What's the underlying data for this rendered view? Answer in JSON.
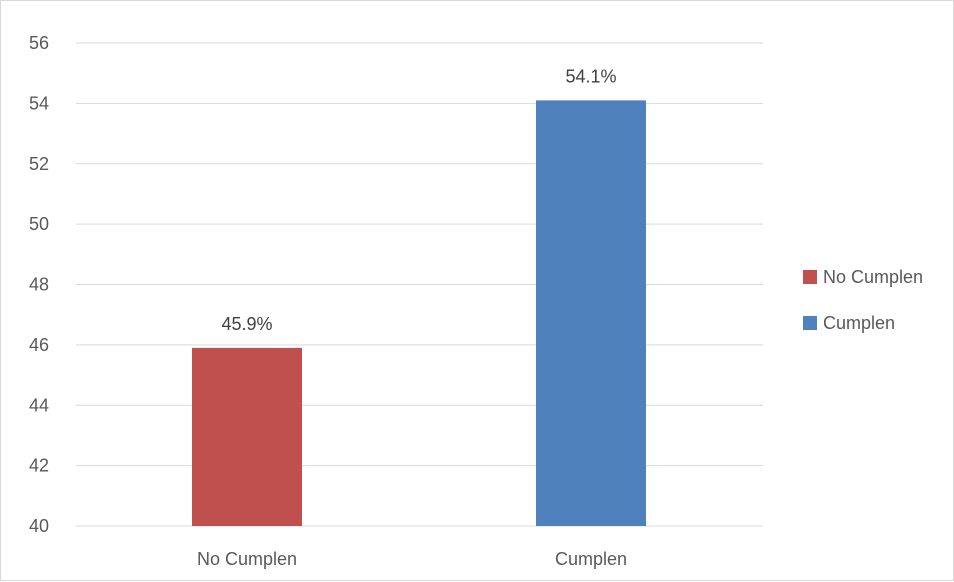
{
  "chart_data": {
    "type": "bar",
    "categories": [
      "No Cumplen",
      "Cumplen"
    ],
    "values": [
      45.9,
      54.1
    ],
    "data_labels": [
      "45.9%",
      "54.1%"
    ],
    "bar_colors": [
      "#c0504d",
      "#4f81bd"
    ],
    "title": "",
    "xlabel": "",
    "ylabel": "",
    "ylim": [
      40,
      56
    ],
    "yticks": [
      40,
      42,
      44,
      46,
      48,
      50,
      52,
      54,
      56
    ],
    "grid": true,
    "gridline_color": "#d9d9d9",
    "legend": {
      "placement": "right",
      "items": [
        {
          "label": "No Cumplen",
          "color": "#c0504d"
        },
        {
          "label": "Cumplen",
          "color": "#4f81bd"
        }
      ]
    }
  }
}
